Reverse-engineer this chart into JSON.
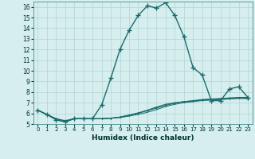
{
  "xlabel": "Humidex (Indice chaleur)",
  "bg_color": "#d6eeee",
  "grid_color": "#b8d8d8",
  "line_color": "#1a6b6b",
  "xlim": [
    -0.5,
    23.5
  ],
  "ylim": [
    5,
    16.5
  ],
  "yticks": [
    5,
    6,
    7,
    8,
    9,
    10,
    11,
    12,
    13,
    14,
    15,
    16
  ],
  "xticks": [
    0,
    1,
    2,
    3,
    4,
    5,
    6,
    7,
    8,
    9,
    10,
    11,
    12,
    13,
    14,
    15,
    16,
    17,
    18,
    19,
    20,
    21,
    22,
    23
  ],
  "line1_x": [
    0,
    1,
    2,
    3,
    4,
    5,
    6,
    7,
    8,
    9,
    10,
    11,
    12,
    13,
    14,
    15,
    16,
    17,
    18,
    19,
    20,
    21,
    22,
    23
  ],
  "line1_y": [
    6.3,
    5.9,
    5.4,
    5.2,
    5.5,
    5.5,
    5.5,
    6.8,
    9.3,
    12.0,
    13.8,
    15.2,
    16.1,
    15.9,
    16.4,
    15.2,
    13.2,
    10.3,
    9.6,
    7.2,
    7.2,
    8.3,
    8.5,
    7.5
  ],
  "line2_x": [
    0,
    1,
    2,
    3,
    4,
    5,
    6,
    7,
    8,
    9,
    10,
    11,
    12,
    13,
    14,
    15,
    16,
    17,
    18,
    19,
    20,
    21,
    22,
    23
  ],
  "line2_y": [
    6.3,
    5.9,
    5.5,
    5.3,
    5.5,
    5.5,
    5.5,
    5.5,
    5.55,
    5.65,
    5.8,
    6.0,
    6.25,
    6.5,
    6.75,
    6.95,
    7.1,
    7.2,
    7.3,
    7.35,
    7.4,
    7.45,
    7.5,
    7.5
  ],
  "line3_x": [
    0,
    1,
    2,
    3,
    4,
    5,
    6,
    7,
    8,
    9,
    10,
    11,
    12,
    13,
    14,
    15,
    16,
    17,
    18,
    19,
    20,
    21,
    22,
    23
  ],
  "line3_y": [
    6.3,
    5.9,
    5.5,
    5.3,
    5.5,
    5.5,
    5.5,
    5.5,
    5.55,
    5.65,
    5.85,
    6.05,
    6.3,
    6.6,
    6.85,
    7.0,
    7.1,
    7.15,
    7.25,
    7.3,
    7.35,
    7.4,
    7.45,
    7.4
  ],
  "line4_x": [
    0,
    1,
    2,
    3,
    4,
    5,
    6,
    7,
    8,
    9,
    10,
    11,
    12,
    13,
    14,
    15,
    16,
    17,
    18,
    19,
    20,
    21,
    22,
    23
  ],
  "line4_y": [
    6.3,
    5.9,
    5.4,
    5.2,
    5.5,
    5.5,
    5.5,
    5.5,
    5.55,
    5.6,
    5.75,
    5.9,
    6.1,
    6.35,
    6.65,
    6.85,
    7.0,
    7.1,
    7.2,
    7.25,
    7.3,
    7.35,
    7.4,
    7.4
  ]
}
